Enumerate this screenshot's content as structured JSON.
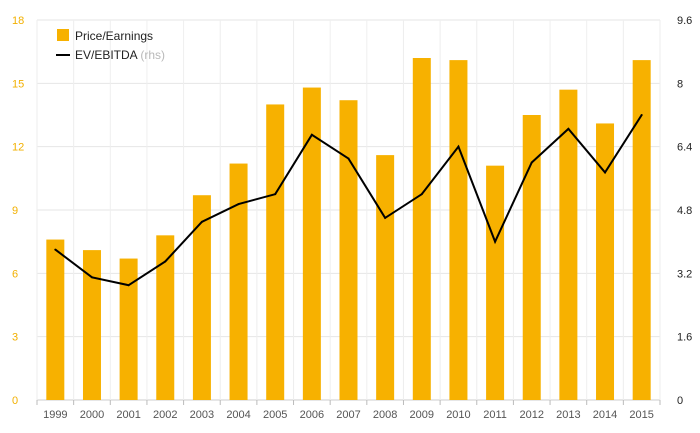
{
  "chart_data": {
    "type": "bar",
    "categories": [
      "1999",
      "2000",
      "2001",
      "2002",
      "2003",
      "2004",
      "2005",
      "2006",
      "2007",
      "2008",
      "2009",
      "2010",
      "2011",
      "2012",
      "2013",
      "2014",
      "2015"
    ],
    "series": [
      {
        "name": "Price/Earnings",
        "type": "bar",
        "axis": "left",
        "color": "#f7b100",
        "values": [
          7.6,
          7.1,
          6.7,
          7.8,
          9.7,
          11.2,
          14.0,
          14.8,
          14.2,
          11.6,
          16.2,
          16.1,
          11.1,
          13.5,
          14.7,
          13.1,
          16.1
        ]
      },
      {
        "name": "EV/EBITDA",
        "type": "line",
        "axis": "right",
        "color": "#000000",
        "values": [
          3.8,
          3.1,
          2.9,
          3.5,
          4.5,
          4.95,
          5.2,
          6.7,
          6.1,
          4.6,
          5.2,
          6.4,
          4.0,
          6.0,
          6.85,
          5.75,
          7.2
        ]
      }
    ],
    "legend": {
      "position": "top-left",
      "items": [
        {
          "label": "Price/Earnings",
          "note": ""
        },
        {
          "label": "EV/EBITDA",
          "note": "(rhs)"
        }
      ]
    },
    "y_left": {
      "ylim": [
        0,
        18
      ],
      "ticks": [
        "0",
        "3",
        "6",
        "9",
        "12",
        "15",
        "18"
      ],
      "color": "#f2b000"
    },
    "y_right": {
      "ylim": [
        0,
        9.6
      ],
      "ticks": [
        "0",
        "1.6",
        "3.2",
        "4.8",
        "6.4",
        "8",
        "9.6"
      ],
      "color": "#222222"
    },
    "grid": true,
    "title": "",
    "xlabel": "",
    "ylabel": ""
  }
}
